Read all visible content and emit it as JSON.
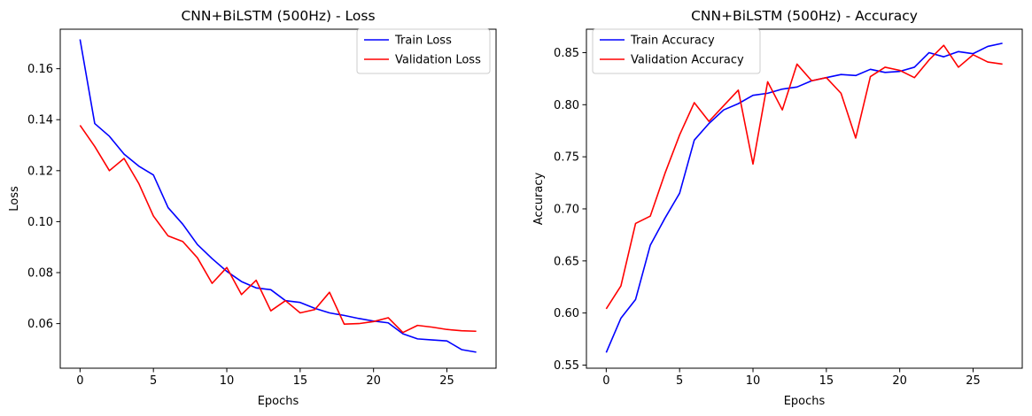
{
  "chart_data": [
    {
      "type": "line",
      "title": "CNN+BiLSTM (500Hz) - Loss",
      "xlabel": "Epochs",
      "ylabel": "Loss",
      "xlim": [
        -1.35,
        28.35
      ],
      "ylim": [
        0.0425,
        0.1755
      ],
      "xticks": [
        0,
        5,
        10,
        15,
        20,
        25
      ],
      "yticks": [
        0.06,
        0.08,
        0.1,
        0.12,
        0.14,
        0.16
      ],
      "ytick_labels": [
        "0.06",
        "0.08",
        "0.10",
        "0.12",
        "0.14",
        "0.16"
      ],
      "grid": false,
      "legend_position": "top-right",
      "x": [
        0,
        1,
        2,
        3,
        4,
        5,
        6,
        7,
        8,
        9,
        10,
        11,
        12,
        13,
        14,
        15,
        16,
        17,
        18,
        19,
        20,
        21,
        22,
        23,
        24,
        25,
        26,
        27
      ],
      "series": [
        {
          "name": "Train Loss",
          "color": "#0000ff",
          "values": [
            0.1715,
            0.1385,
            0.1335,
            0.1265,
            0.1218,
            0.1183,
            0.1055,
            0.099,
            0.091,
            0.0855,
            0.0805,
            0.0765,
            0.074,
            0.0733,
            0.069,
            0.0683,
            0.066,
            0.0642,
            0.0632,
            0.062,
            0.061,
            0.0603,
            0.056,
            0.054,
            0.0536,
            0.0532,
            0.0498,
            0.0488
          ]
        },
        {
          "name": "Validation Loss",
          "color": "#ff0000",
          "values": [
            0.1378,
            0.1295,
            0.12,
            0.1248,
            0.115,
            0.1022,
            0.0944,
            0.0922,
            0.0858,
            0.0758,
            0.082,
            0.0714,
            0.077,
            0.065,
            0.069,
            0.0642,
            0.0655,
            0.0723,
            0.0598,
            0.06,
            0.0608,
            0.0623,
            0.0565,
            0.0593,
            0.0586,
            0.0577,
            0.0572,
            0.057
          ]
        }
      ]
    },
    {
      "type": "line",
      "title": "CNN+BiLSTM (500Hz) - Accuracy",
      "xlabel": "Epochs",
      "ylabel": "Accuracy",
      "xlim": [
        -1.35,
        28.35
      ],
      "ylim": [
        0.547,
        0.8725
      ],
      "xticks": [
        0,
        5,
        10,
        15,
        20,
        25
      ],
      "yticks": [
        0.55,
        0.6,
        0.65,
        0.7,
        0.75,
        0.8,
        0.85
      ],
      "ytick_labels": [
        "0.55",
        "0.60",
        "0.65",
        "0.70",
        "0.75",
        "0.80",
        "0.85"
      ],
      "grid": false,
      "legend_position": "top-left",
      "x": [
        0,
        1,
        2,
        3,
        4,
        5,
        6,
        7,
        8,
        9,
        10,
        11,
        12,
        13,
        14,
        15,
        16,
        17,
        18,
        19,
        20,
        21,
        22,
        23,
        24,
        25,
        26,
        27
      ],
      "series": [
        {
          "name": "Train Accuracy",
          "color": "#0000ff",
          "values": [
            0.562,
            0.595,
            0.613,
            0.665,
            0.691,
            0.715,
            0.766,
            0.782,
            0.795,
            0.801,
            0.809,
            0.811,
            0.815,
            0.817,
            0.823,
            0.826,
            0.829,
            0.828,
            0.834,
            0.831,
            0.832,
            0.836,
            0.85,
            0.846,
            0.851,
            0.849,
            0.856,
            0.859
          ]
        },
        {
          "name": "Validation Accuracy",
          "color": "#ff0000",
          "values": [
            0.604,
            0.626,
            0.686,
            0.693,
            0.734,
            0.771,
            0.802,
            0.784,
            0.799,
            0.814,
            0.743,
            0.822,
            0.795,
            0.839,
            0.823,
            0.826,
            0.811,
            0.768,
            0.827,
            0.836,
            0.833,
            0.826,
            0.843,
            0.857,
            0.836,
            0.848,
            0.841,
            0.839
          ]
        }
      ]
    }
  ]
}
